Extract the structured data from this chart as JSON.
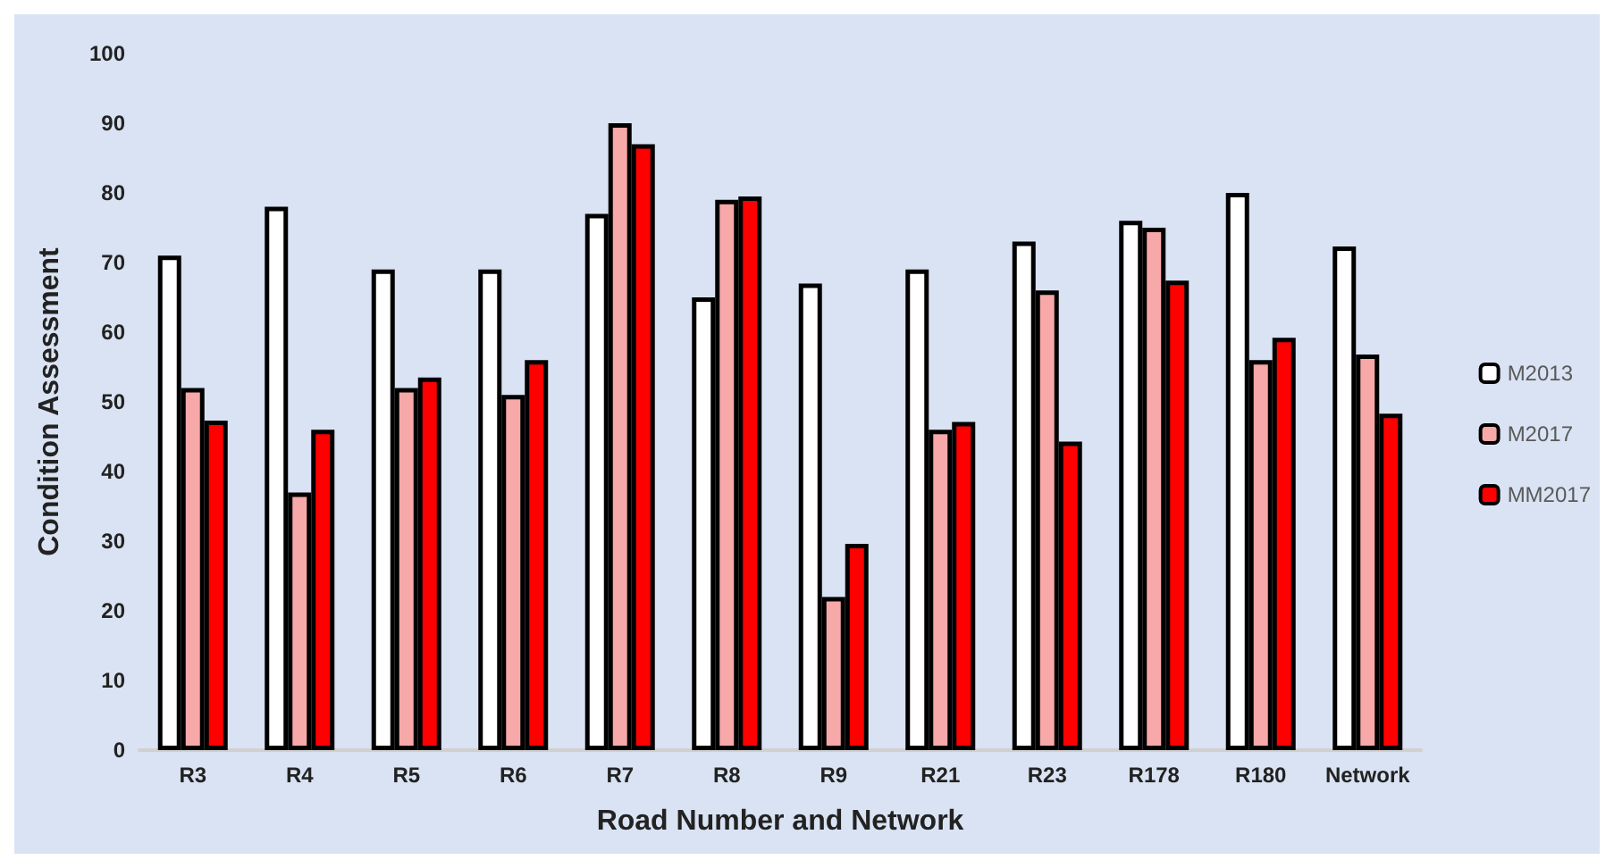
{
  "chart_data": {
    "type": "bar",
    "xlabel": "Road Number and Network",
    "ylabel": "Condition Assessment",
    "categories": [
      "R3",
      "R4",
      "R5",
      "R6",
      "R7",
      "R8",
      "R9",
      "R21",
      "R23",
      "R178",
      "R180",
      "Network"
    ],
    "series": [
      {
        "name": "M2013",
        "color": "#ffffff",
        "values": [
          71,
          78,
          69,
          69,
          77,
          65,
          67,
          69,
          73,
          76,
          80,
          72.3
        ]
      },
      {
        "name": "M2017",
        "color": "#f7a8a8",
        "values": [
          52,
          37,
          52,
          51,
          90,
          79,
          22,
          46,
          66,
          75,
          56,
          56.8
        ]
      },
      {
        "name": "MM2017",
        "color": "#ff0000",
        "values": [
          47.3,
          46,
          53.5,
          56,
          87,
          79.5,
          29.6,
          47.1,
          44.3,
          67.4,
          59.2,
          48.3
        ]
      }
    ],
    "ylim": [
      0,
      100
    ],
    "yticks": [
      0,
      10,
      20,
      30,
      40,
      50,
      60,
      70,
      80,
      90,
      100
    ],
    "grid": false,
    "legend": "right"
  }
}
